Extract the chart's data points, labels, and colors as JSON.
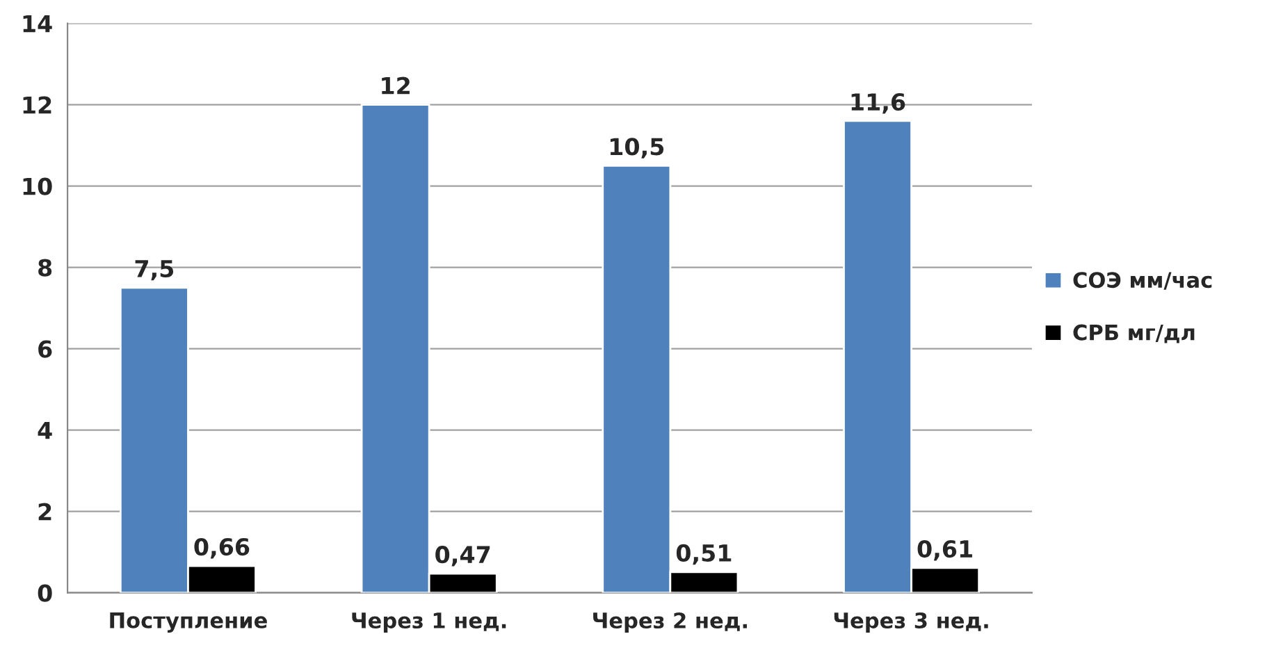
{
  "chart_data": {
    "type": "bar",
    "categories": [
      "Поступление",
      "Через 1 нед.",
      "Через 2 нед.",
      "Через 3 нед."
    ],
    "series": [
      {
        "name": "СОЭ мм/час",
        "color": "#4f81bd",
        "values": [
          7.5,
          12,
          10.5,
          11.6
        ],
        "value_labels": [
          "7,5",
          "12",
          "10,5",
          "11,6"
        ]
      },
      {
        "name": "СРБ мг/дл",
        "color": "#000000",
        "values": [
          0.66,
          0.47,
          0.51,
          0.61
        ],
        "value_labels": [
          "0,66",
          "0,47",
          "0,51",
          "0,61"
        ]
      }
    ],
    "ylim": [
      0,
      14
    ],
    "yticks": [
      0,
      2,
      4,
      6,
      8,
      10,
      12,
      14
    ],
    "grid": "y",
    "legend": "right"
  }
}
